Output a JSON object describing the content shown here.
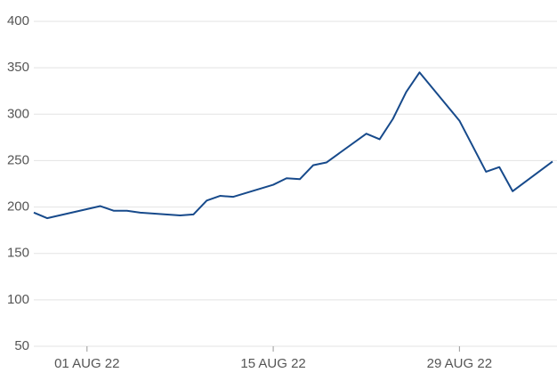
{
  "chart_data": {
    "type": "line",
    "x": [
      "2022-07-28",
      "2022-07-29",
      "2022-08-02",
      "2022-08-03",
      "2022-08-04",
      "2022-08-05",
      "2022-08-08",
      "2022-08-09",
      "2022-08-10",
      "2022-08-11",
      "2022-08-12",
      "2022-08-15",
      "2022-08-16",
      "2022-08-17",
      "2022-08-18",
      "2022-08-19",
      "2022-08-22",
      "2022-08-23",
      "2022-08-24",
      "2022-08-25",
      "2022-08-26",
      "2022-08-29",
      "2022-08-31",
      "2022-09-01",
      "2022-09-02",
      "2022-09-05"
    ],
    "values": [
      194,
      188,
      201,
      196,
      196,
      194,
      191,
      192,
      207,
      212,
      211,
      224,
      231,
      230,
      245,
      248,
      279,
      273,
      295,
      324,
      345,
      293,
      238,
      243,
      217,
      249
    ],
    "color": "#174a8b",
    "xlim": [
      "2022-07-28",
      "2022-09-05"
    ],
    "xticks": [
      {
        "value": "2022-08-01",
        "label": "01 AUG 22"
      },
      {
        "value": "2022-08-15",
        "label": "15 AUG 22"
      },
      {
        "value": "2022-08-29",
        "label": "29 AUG 22"
      }
    ],
    "ylim": [
      50,
      400
    ],
    "yticks": [
      50,
      100,
      150,
      200,
      250,
      300,
      350,
      400
    ],
    "grid": true
  }
}
